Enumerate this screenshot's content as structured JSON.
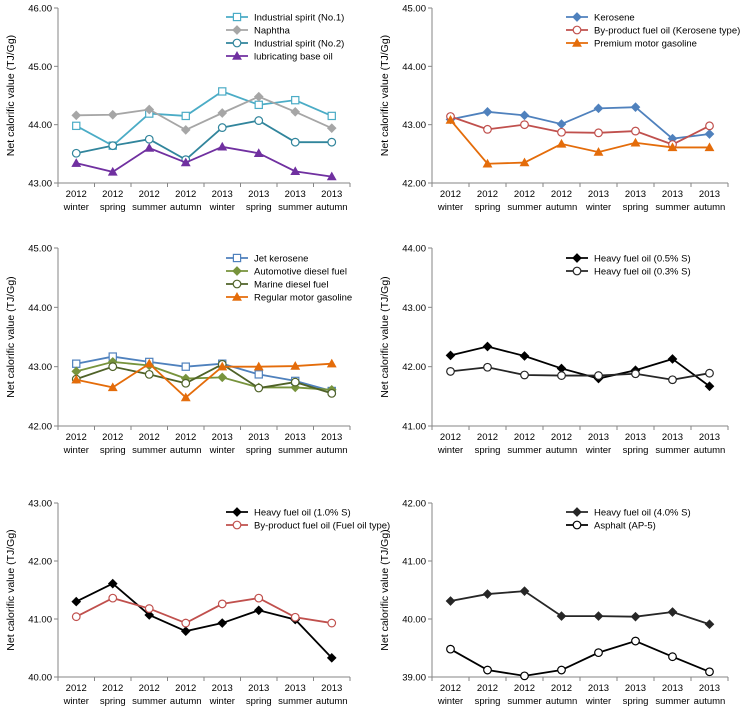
{
  "chart_data": [
    {
      "type": "line",
      "ylabel": "Net calorific value (TJ/Gg)",
      "ylim": [
        43.0,
        46.0
      ],
      "yticks": [
        "43.00",
        "44.00",
        "45.00",
        "46.00"
      ],
      "categories": [
        [
          "2012",
          "winter"
        ],
        [
          "2012",
          "spring"
        ],
        [
          "2012",
          "summer"
        ],
        [
          "2012",
          "autumn"
        ],
        [
          "2013",
          "winter"
        ],
        [
          "2013",
          "spring"
        ],
        [
          "2013",
          "summer"
        ],
        [
          "2013",
          "autumn"
        ]
      ],
      "series": [
        {
          "name": "Industrial spirit (No.1)",
          "color": "#4bacc6",
          "marker": "square-open",
          "values": [
            43.98,
            43.64,
            44.19,
            44.15,
            44.57,
            44.34,
            44.42,
            44.15
          ]
        },
        {
          "name": "Naphtha",
          "color": "#a6a6a6",
          "marker": "diamond",
          "values": [
            44.16,
            44.17,
            44.26,
            43.91,
            44.2,
            44.48,
            44.22,
            43.94
          ]
        },
        {
          "name": "Industrial spirit (No.2)",
          "color": "#31859c",
          "marker": "circle-open",
          "values": [
            43.51,
            43.64,
            43.75,
            43.4,
            43.95,
            44.07,
            43.7,
            43.7
          ]
        },
        {
          "name": "lubricating base oil",
          "color": "#7030a0",
          "marker": "triangle",
          "values": [
            43.34,
            43.19,
            43.6,
            43.35,
            43.62,
            43.51,
            43.2,
            43.11
          ]
        }
      ]
    },
    {
      "type": "line",
      "ylabel": "Net calorific value (TJ/Gg)",
      "ylim": [
        42.0,
        45.0
      ],
      "yticks": [
        "42.00",
        "43.00",
        "44.00",
        "45.00"
      ],
      "categories": [
        [
          "2012",
          "winter"
        ],
        [
          "2012",
          "spring"
        ],
        [
          "2012",
          "summer"
        ],
        [
          "2012",
          "autumn"
        ],
        [
          "2013",
          "winter"
        ],
        [
          "2013",
          "spring"
        ],
        [
          "2013",
          "summer"
        ],
        [
          "2013",
          "autumn"
        ]
      ],
      "series": [
        {
          "name": "Kerosene",
          "color": "#4f81bd",
          "marker": "diamond",
          "values": [
            43.09,
            43.22,
            43.16,
            43.01,
            43.28,
            43.3,
            42.76,
            42.84
          ]
        },
        {
          "name": "By-product fuel oil (Kerosene type)",
          "color": "#c0504d",
          "marker": "circle-open",
          "values": [
            43.14,
            42.92,
            43.0,
            42.87,
            42.86,
            42.89,
            42.66,
            42.98
          ]
        },
        {
          "name": "Premium motor gasoline",
          "color": "#e46c0a",
          "marker": "triangle",
          "values": [
            43.08,
            42.33,
            42.35,
            42.67,
            42.53,
            42.69,
            42.61,
            42.61
          ]
        }
      ]
    },
    {
      "type": "line",
      "ylabel": "Net calorific value (TJ/Gg)",
      "ylim": [
        42.0,
        45.0
      ],
      "yticks": [
        "42.00",
        "43.00",
        "44.00",
        "45.00"
      ],
      "categories": [
        [
          "2012",
          "winter"
        ],
        [
          "2012",
          "spring"
        ],
        [
          "2012",
          "summer"
        ],
        [
          "2012",
          "autumn"
        ],
        [
          "2013",
          "winter"
        ],
        [
          "2013",
          "spring"
        ],
        [
          "2013",
          "summer"
        ],
        [
          "2013",
          "autumn"
        ]
      ],
      "series": [
        {
          "name": "Jet kerosene",
          "color": "#4f81bd",
          "marker": "square-open",
          "values": [
            43.05,
            43.17,
            43.08,
            43.0,
            43.05,
            42.87,
            42.76,
            42.59
          ]
        },
        {
          "name": "Automotive diesel fuel",
          "color": "#77933c",
          "marker": "diamond",
          "values": [
            42.92,
            43.08,
            43.02,
            42.8,
            42.82,
            42.65,
            42.65,
            42.61
          ]
        },
        {
          "name": "Marine diesel fuel",
          "color": "#4f6228",
          "marker": "circle-open",
          "values": [
            42.79,
            43.0,
            42.87,
            42.72,
            43.04,
            42.64,
            42.74,
            42.55
          ]
        },
        {
          "name": "Regular motor gasoline",
          "color": "#e46c0a",
          "marker": "triangle",
          "values": [
            42.78,
            42.65,
            43.05,
            42.48,
            43.0,
            43.0,
            43.01,
            43.05
          ]
        }
      ]
    },
    {
      "type": "line",
      "ylabel": "Net calorific value (TJ/Gg)",
      "ylim": [
        41.0,
        44.0
      ],
      "yticks": [
        "41.00",
        "42.00",
        "43.00",
        "44.00"
      ],
      "categories": [
        [
          "2012",
          "winter"
        ],
        [
          "2012",
          "spring"
        ],
        [
          "2012",
          "summer"
        ],
        [
          "2012",
          "autumn"
        ],
        [
          "2013",
          "winter"
        ],
        [
          "2013",
          "spring"
        ],
        [
          "2013",
          "summer"
        ],
        [
          "2013",
          "autumn"
        ]
      ],
      "series": [
        {
          "name": "Heavy fuel oil (0.5% S)",
          "color": "#000000",
          "marker": "diamond",
          "values": [
            42.19,
            42.34,
            42.18,
            41.97,
            41.8,
            41.94,
            42.13,
            41.67
          ]
        },
        {
          "name": "Heavy fuel oil (0.3% S)",
          "color": "#262626",
          "marker": "circle-open",
          "values": [
            41.92,
            41.99,
            41.86,
            41.85,
            41.85,
            41.88,
            41.78,
            41.89
          ]
        }
      ]
    },
    {
      "type": "line",
      "ylabel": "Net calorific value (TJ/Gg)",
      "ylim": [
        40.0,
        43.0
      ],
      "yticks": [
        "40.00",
        "41.00",
        "42.00",
        "43.00"
      ],
      "categories": [
        [
          "2012",
          "winter"
        ],
        [
          "2012",
          "spring"
        ],
        [
          "2012",
          "summer"
        ],
        [
          "2012",
          "autumn"
        ],
        [
          "2013",
          "winter"
        ],
        [
          "2013",
          "spring"
        ],
        [
          "2013",
          "summer"
        ],
        [
          "2013",
          "autumn"
        ]
      ],
      "series": [
        {
          "name": "Heavy fuel oil (1.0% S)",
          "color": "#000000",
          "marker": "diamond",
          "values": [
            41.3,
            41.61,
            41.07,
            40.79,
            40.93,
            41.15,
            40.99,
            40.33
          ]
        },
        {
          "name": "By-product fuel oil (Fuel oil type)",
          "color": "#c0504d",
          "marker": "circle-open",
          "values": [
            41.04,
            41.36,
            41.18,
            40.93,
            41.26,
            41.36,
            41.03,
            40.93
          ]
        }
      ]
    },
    {
      "type": "line",
      "ylabel": "Net calorific value (TJ/Gg)",
      "ylim": [
        39.0,
        42.0
      ],
      "yticks": [
        "39.00",
        "40.00",
        "41.00",
        "42.00"
      ],
      "categories": [
        [
          "2012",
          "winter"
        ],
        [
          "2012",
          "spring"
        ],
        [
          "2012",
          "summer"
        ],
        [
          "2012",
          "autumn"
        ],
        [
          "2013",
          "winter"
        ],
        [
          "2013",
          "spring"
        ],
        [
          "2013",
          "summer"
        ],
        [
          "2013",
          "autumn"
        ]
      ],
      "series": [
        {
          "name": "Heavy fuel oil (4.0% S)",
          "color": "#262626",
          "marker": "diamond",
          "values": [
            40.31,
            40.43,
            40.48,
            40.05,
            40.05,
            40.04,
            40.12,
            39.91
          ]
        },
        {
          "name": "Asphalt (AP-5)",
          "color": "#000000",
          "marker": "circle-open",
          "values": [
            39.48,
            39.12,
            39.02,
            39.12,
            39.42,
            39.62,
            39.35,
            39.09
          ]
        }
      ]
    }
  ]
}
